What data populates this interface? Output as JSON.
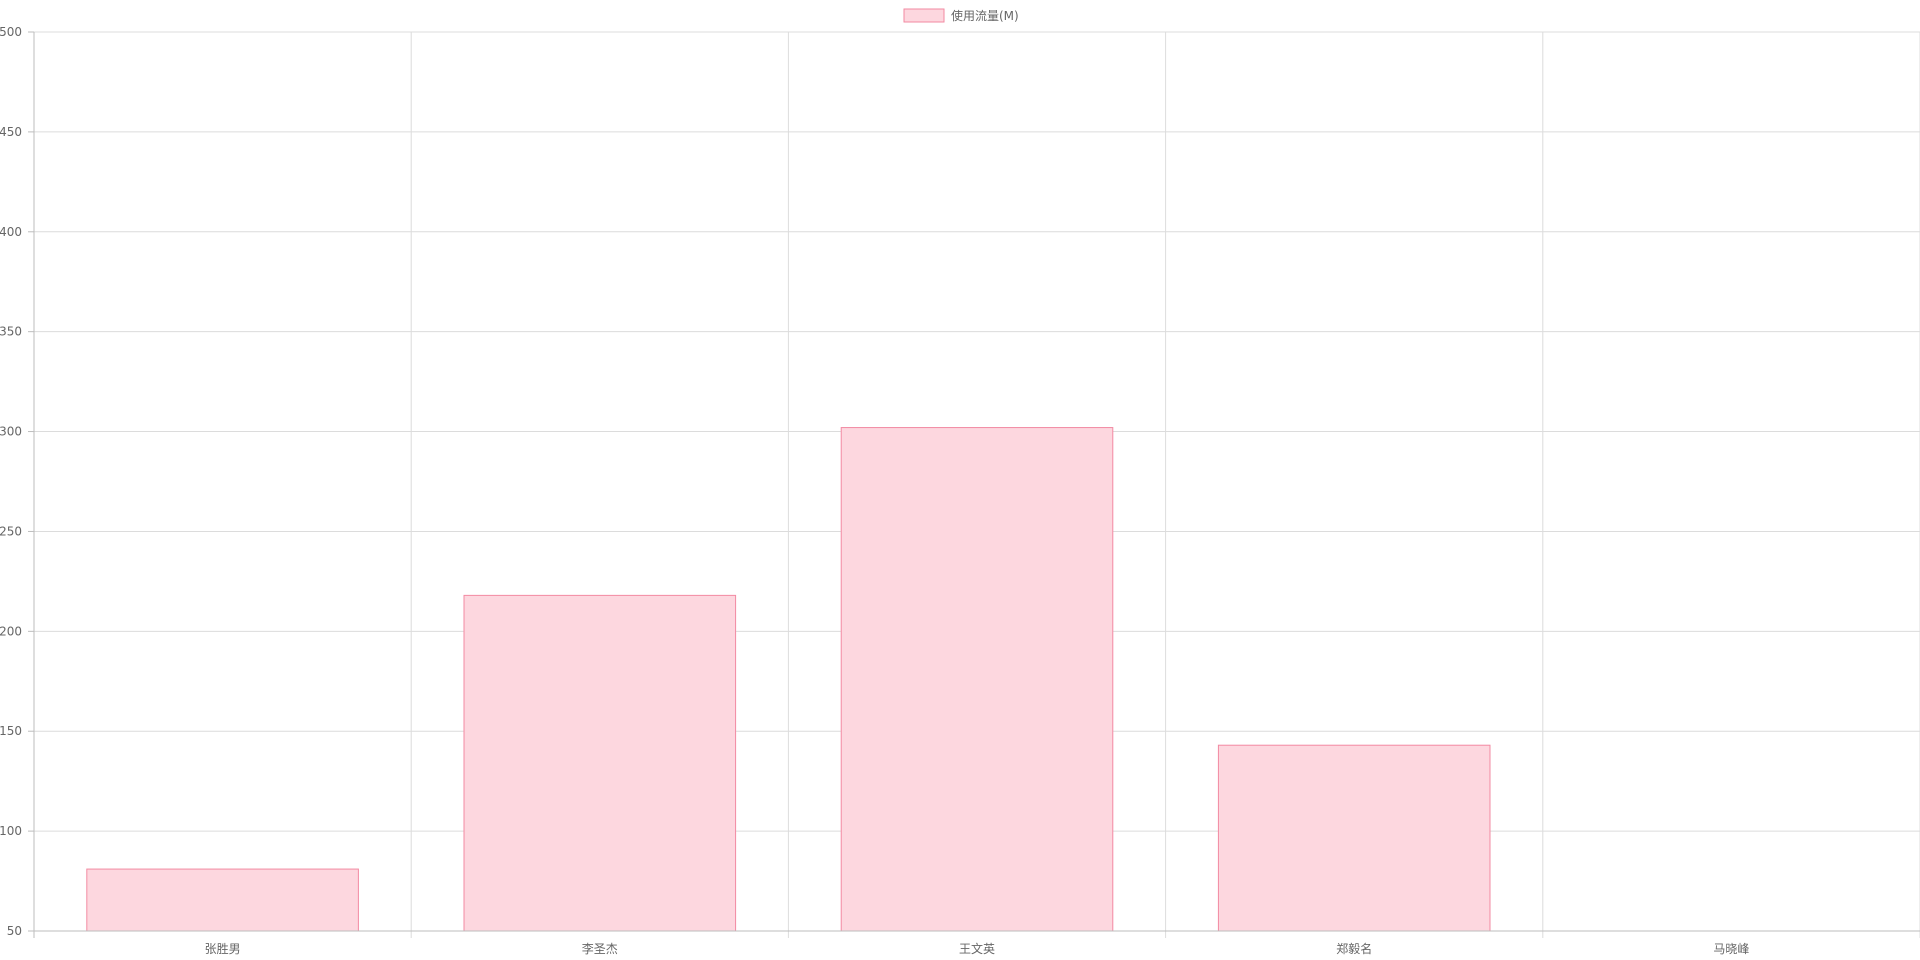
{
  "chart_data": {
    "type": "bar",
    "title": "",
    "xlabel": "",
    "ylabel": "",
    "categories": [
      "张胜男",
      "李圣杰",
      "王文英",
      "郑毅名",
      "马晓峰"
    ],
    "series": [
      {
        "name": "使用流量(M)",
        "values": [
          81,
          218,
          302,
          143,
          50
        ]
      }
    ],
    "ylim": [
      50,
      500
    ],
    "yticks": [
      "500",
      "450",
      "400",
      "350",
      "300",
      "250",
      "200",
      "150",
      "100",
      "50"
    ],
    "grid": true,
    "legend_position": "top-center",
    "colors": {
      "bar_fill": "#fdd7df",
      "bar_stroke": "#f28aa2",
      "legend_fill": "#fdd7df",
      "legend_stroke": "#f28aa2",
      "grid": "#dcdcdc",
      "axis": "#bdbdbd",
      "tick_text": "#666666"
    }
  }
}
